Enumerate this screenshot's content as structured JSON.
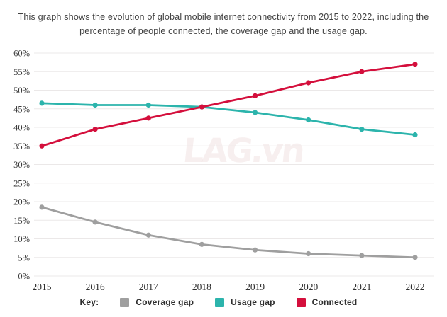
{
  "page": {
    "title_lines": [
      "This graph shows the evolution of global mobile internet connectivity from 2015 to 2022, including the",
      "percentage of people connected, the coverage gap and the usage gap."
    ],
    "watermark": "LAG.vn"
  },
  "legend": {
    "key_label": "Key:"
  },
  "colors": {
    "background": "#ffffff",
    "gridline": "#ebe8e8",
    "tick_text": "#3a3a3a",
    "coverage_gap": "#9f9f9f",
    "usage_gap": "#2cb4ac",
    "connected": "#d40f3c"
  },
  "chart_data": {
    "type": "line",
    "title": "This graph shows the evolution of global mobile internet connectivity from 2015 to 2022, including the percentage of people connected, the coverage gap and the usage gap.",
    "x": [
      "2015",
      "2016",
      "2017",
      "2018",
      "2019",
      "2020",
      "2021",
      "2022"
    ],
    "series": [
      {
        "name": "Coverage gap",
        "color": "#9f9f9f",
        "values": [
          18.5,
          14.5,
          11,
          8.5,
          7,
          6,
          5.5,
          5
        ]
      },
      {
        "name": "Usage gap",
        "color": "#2cb4ac",
        "values": [
          46.5,
          46,
          46,
          45.5,
          44,
          42,
          39.5,
          38
        ]
      },
      {
        "name": "Connected",
        "color": "#d40f3c",
        "values": [
          35,
          39.5,
          42.5,
          45.5,
          48.5,
          52,
          55,
          57
        ]
      }
    ],
    "xlabel": "",
    "ylabel": "",
    "ylim": [
      0,
      60
    ],
    "ytick_step": 5,
    "ytick_suffix": "%",
    "grid": true,
    "legend_position": "bottom"
  }
}
